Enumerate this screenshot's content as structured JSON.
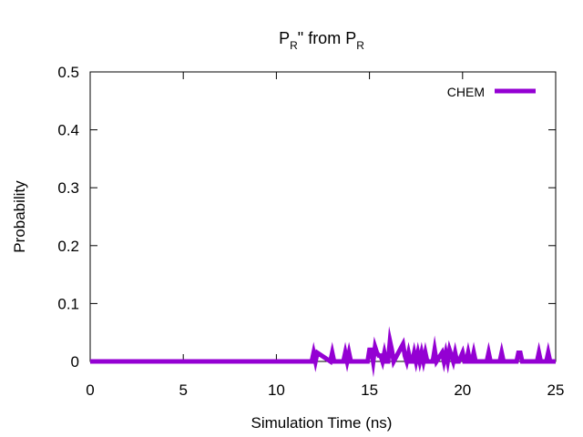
{
  "chart_data": {
    "type": "line",
    "title": {
      "p1": "P",
      "s1": "R",
      "mid": "\" from P",
      "s2": "R"
    },
    "xlabel": "Simulation Time (ns)",
    "ylabel": "Probability",
    "xlim": [
      0,
      25
    ],
    "ylim": [
      0,
      0.5
    ],
    "xticks": [
      "0",
      "5",
      "10",
      "15",
      "20",
      "25"
    ],
    "yticks": [
      "0",
      "0.1",
      "0.2",
      "0.3",
      "0.4",
      "0.5"
    ],
    "legend_position": "top-right",
    "grid": false,
    "series": [
      {
        "name": "CHEM",
        "color": "#9400d3",
        "x": [
          0,
          11.9,
          12.0,
          12.1,
          12.2,
          12.9,
          13.0,
          13.1,
          13.6,
          13.7,
          13.8,
          13.9,
          14.0,
          14.1,
          14.9,
          15.0,
          15.1,
          15.2,
          15.3,
          15.4,
          15.5,
          15.6,
          15.7,
          15.8,
          15.9,
          16.0,
          16.1,
          16.2,
          16.3,
          16.8,
          16.9,
          17.0,
          17.1,
          17.2,
          17.3,
          17.4,
          17.5,
          17.6,
          17.7,
          17.8,
          17.9,
          18.0,
          18.1,
          18.4,
          18.5,
          18.6,
          18.9,
          19.0,
          19.1,
          19.2,
          19.3,
          19.4,
          19.5,
          19.6,
          19.7,
          19.8,
          20.0,
          20.1,
          20.2,
          20.3,
          20.4,
          20.5,
          20.6,
          20.7,
          21.3,
          21.4,
          21.5,
          22.0,
          22.1,
          22.2,
          22.9,
          23.0,
          23.1,
          23.2,
          24.0,
          24.1,
          24.2,
          24.5,
          24.6,
          24.7,
          25.0
        ],
        "y": [
          0,
          0,
          0.015,
          0,
          0.015,
          0,
          0.015,
          0,
          0,
          0.015,
          0,
          0.015,
          0,
          0,
          0,
          0.02,
          0.02,
          0,
          0.025,
          0.015,
          0.01,
          0.01,
          0,
          0.015,
          0,
          0,
          0.035,
          0.02,
          0,
          0.03,
          0.01,
          0,
          0.015,
          0,
          0,
          0.015,
          0,
          0.015,
          0,
          0.015,
          0,
          0.015,
          0,
          0,
          0.02,
          0,
          0.015,
          0,
          0.015,
          0,
          0.02,
          0.01,
          0,
          0.015,
          0,
          0,
          0.015,
          0,
          0,
          0.015,
          0,
          0,
          0.015,
          0,
          0,
          0.015,
          0,
          0,
          0.015,
          0,
          0,
          0.015,
          0.015,
          0,
          0,
          0.015,
          0,
          0,
          0.015,
          0,
          0
        ]
      }
    ]
  }
}
